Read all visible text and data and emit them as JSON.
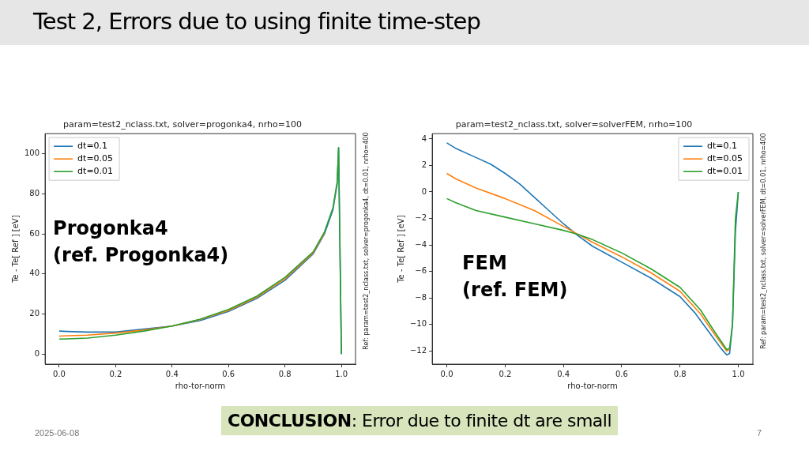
{
  "chart_data": [
    {
      "type": "line",
      "title": "param=test2_nclass.txt, solver=progonka4, nrho=100",
      "xlabel": "rho-tor-norm",
      "ylabel": "Te - Te[ Ref ] [eV]",
      "y2label": "Ref: param=test2_nclass.txt, solver=progonka4, dt=0.01, nrho=400",
      "annotations": [
        "Progonka4",
        "(ref. Progonka4)",
        "Test 2, Errors due to using finite time-step",
        "CONCLUSION: Error due to finite dt are small",
        "2025-06-08",
        "7"
      ],
      "xlim": [
        -0.05,
        1.05
      ],
      "xticks": [
        {
          "value": 0,
          "label": "0.0"
        },
        {
          "value": 0.2,
          "label": "0.2"
        },
        {
          "value": 0.4,
          "label": "0.4"
        },
        {
          "value": 0.6,
          "label": "0.6"
        },
        {
          "value": 0.8,
          "label": "0.8"
        },
        {
          "value": 1,
          "label": "1.0"
        }
      ],
      "ylim": [
        -5,
        110
      ],
      "yticks": [
        0,
        20,
        40,
        60,
        80,
        100
      ],
      "grid": false,
      "legend": "top left",
      "marker": "none",
      "line_style": "solid",
      "series": [
        {
          "name": "dt=0.1",
          "color": "#1f77b4",
          "x": [
            0,
            0.03,
            0.1,
            0.2,
            0.3,
            0.4,
            0.5,
            0.6,
            0.7,
            0.8,
            0.9,
            0.94,
            0.97,
            0.985,
            0.99,
            1.0
          ],
          "values": [
            11.5,
            11.3,
            11,
            11,
            12.5,
            14,
            16.8,
            21.3,
            27.8,
            36.8,
            50,
            60,
            72,
            85,
            103,
            0
          ]
        },
        {
          "name": "dt=0.05",
          "color": "#ff7f0e",
          "x": [
            0,
            0.03,
            0.1,
            0.2,
            0.3,
            0.4,
            0.5,
            0.6,
            0.7,
            0.8,
            0.9,
            0.94
          ],
          "values": [
            9,
            9.2,
            9.5,
            10.5,
            12,
            14,
            17.3,
            21.8,
            28.4,
            37.6,
            50.5,
            60.5
          ]
        },
        {
          "name": "dt=0.01",
          "color": "#2ca02c",
          "x": [
            0,
            0.03,
            0.1,
            0.2,
            0.3,
            0.4,
            0.5,
            0.6,
            0.7,
            0.8,
            0.9,
            0.94,
            0.97,
            0.985,
            0.99,
            1.0
          ],
          "values": [
            7.5,
            7.6,
            8,
            9.5,
            11.5,
            14,
            17.5,
            22.3,
            28.9,
            38.3,
            51,
            61,
            73,
            86,
            103,
            0
          ]
        }
      ]
    },
    {
      "type": "line",
      "title": "param=test2_nclass.txt, solver=solverFEM, nrho=100",
      "xlabel": "rho-tor-norm",
      "ylabel": "Te - Te[ Ref ] [eV]",
      "y2label": "Ref: param=test2_nclass.txt, solver=solverFEM, dt=0.01, nrho=400",
      "annotations": [
        "FEM",
        "(ref. FEM)"
      ],
      "xlim": [
        -0.05,
        1.05
      ],
      "xticks": [
        {
          "value": 0,
          "label": "0.0"
        },
        {
          "value": 0.2,
          "label": "0.2"
        },
        {
          "value": 0.4,
          "label": "0.4"
        },
        {
          "value": 0.6,
          "label": "0.6"
        },
        {
          "value": 0.8,
          "label": "0.8"
        },
        {
          "value": 1,
          "label": "1.0"
        }
      ],
      "ylim": [
        -13,
        4.4
      ],
      "yticks": [
        {
          "value": -12,
          "label": "−12"
        },
        {
          "value": -10,
          "label": "−10"
        },
        {
          "value": -8,
          "label": "−8"
        },
        {
          "value": -6,
          "label": "−6"
        },
        {
          "value": -4,
          "label": "−4"
        },
        {
          "value": -2,
          "label": "−2"
        },
        0,
        2,
        4
      ],
      "grid": false,
      "legend": "top right",
      "marker": "none",
      "line_style": "solid",
      "series": [
        {
          "name": "dt=0.1",
          "color": "#1f77b4",
          "x": [
            0,
            0.03,
            0.1,
            0.15,
            0.2,
            0.25,
            0.3,
            0.35,
            0.4,
            0.45,
            0.5,
            0.6,
            0.7,
            0.8,
            0.85,
            0.9,
            0.94,
            0.96,
            0.97,
            0.98,
            0.99,
            1.0
          ],
          "values": [
            3.7,
            3.3,
            2.6,
            2.1,
            1.4,
            0.6,
            -0.4,
            -1.4,
            -2.4,
            -3.3,
            -4.1,
            -5.3,
            -6.5,
            -7.9,
            -9.1,
            -10.6,
            -11.8,
            -12.3,
            -12.2,
            -10,
            -3,
            0
          ]
        },
        {
          "name": "dt=0.05",
          "color": "#ff7f0e",
          "x": [
            0,
            0.03,
            0.1,
            0.2,
            0.3,
            0.4,
            0.45,
            0.5,
            0.6,
            0.7,
            0.8,
            0.87,
            0.92,
            0.96,
            0.97
          ],
          "values": [
            1.4,
            1,
            0.3,
            -0.5,
            -1.4,
            -2.6,
            -3.2,
            -3.8,
            -4.9,
            -6.1,
            -7.5,
            -9.2,
            -10.8,
            -12,
            -11.9
          ]
        },
        {
          "name": "dt=0.01",
          "color": "#2ca02c",
          "x": [
            0,
            0.03,
            0.1,
            0.2,
            0.3,
            0.4,
            0.45,
            0.5,
            0.6,
            0.7,
            0.8,
            0.87,
            0.92,
            0.96,
            0.97,
            0.98,
            0.99,
            1.0
          ],
          "values": [
            -0.5,
            -0.8,
            -1.4,
            -1.9,
            -2.4,
            -2.9,
            -3.2,
            -3.6,
            -4.6,
            -5.8,
            -7.2,
            -8.9,
            -10.6,
            -11.9,
            -11.8,
            -10,
            -2,
            0
          ]
        }
      ]
    }
  ]
}
